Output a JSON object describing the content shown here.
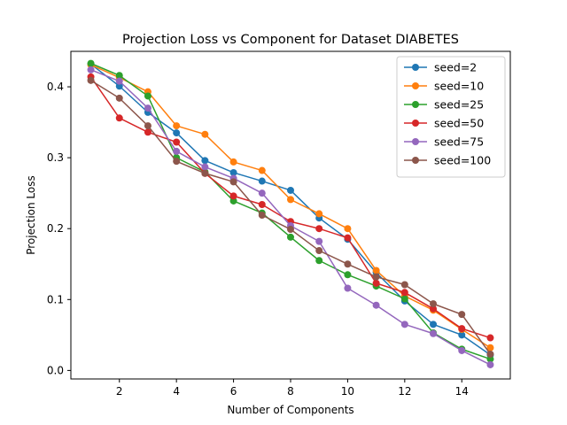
{
  "chart_data": {
    "type": "line",
    "title": "Projection Loss vs Component for Dataset DIABETES",
    "xlabel": "Number of Components",
    "ylabel": "Projection Loss",
    "xlim": [
      0.3,
      15.7
    ],
    "ylim": [
      -0.012,
      0.45
    ],
    "xticks": [
      2,
      4,
      6,
      8,
      10,
      12,
      14
    ],
    "yticks": [
      0.0,
      0.1,
      0.2,
      0.3,
      0.4
    ],
    "ytick_labels": [
      "0.0",
      "0.1",
      "0.2",
      "0.3",
      "0.4"
    ],
    "grid": false,
    "legend_position": "top-right",
    "x": [
      1,
      2,
      3,
      4,
      5,
      6,
      7,
      8,
      9,
      10,
      11,
      12,
      13,
      14,
      15
    ],
    "series": [
      {
        "name": "seed=2",
        "color": "#1f77b4",
        "values": [
          0.432,
          0.401,
          0.364,
          0.335,
          0.296,
          0.279,
          0.267,
          0.254,
          0.215,
          0.185,
          0.138,
          0.098,
          0.065,
          0.05,
          0.022
        ]
      },
      {
        "name": "seed=10",
        "color": "#ff7f0e",
        "values": [
          0.431,
          0.413,
          0.393,
          0.345,
          0.333,
          0.294,
          0.282,
          0.241,
          0.221,
          0.2,
          0.141,
          0.105,
          0.085,
          0.058,
          0.032
        ]
      },
      {
        "name": "seed=25",
        "color": "#2ca02c",
        "values": [
          0.433,
          0.416,
          0.387,
          0.3,
          0.28,
          0.239,
          0.222,
          0.188,
          0.155,
          0.135,
          0.119,
          0.101,
          0.053,
          0.03,
          0.016
        ]
      },
      {
        "name": "seed=50",
        "color": "#d62728",
        "values": [
          0.414,
          0.356,
          0.336,
          0.322,
          0.278,
          0.246,
          0.234,
          0.21,
          0.2,
          0.187,
          0.123,
          0.11,
          0.087,
          0.059,
          0.046
        ]
      },
      {
        "name": "seed=75",
        "color": "#9467bd",
        "values": [
          0.424,
          0.408,
          0.37,
          0.309,
          0.287,
          0.271,
          0.25,
          0.204,
          0.182,
          0.116,
          0.092,
          0.065,
          0.052,
          0.028,
          0.008
        ]
      },
      {
        "name": "seed=100",
        "color": "#8c564b",
        "values": [
          0.409,
          0.384,
          0.345,
          0.295,
          0.278,
          0.266,
          0.219,
          0.199,
          0.169,
          0.15,
          0.132,
          0.121,
          0.094,
          0.079,
          0.023
        ]
      }
    ]
  }
}
